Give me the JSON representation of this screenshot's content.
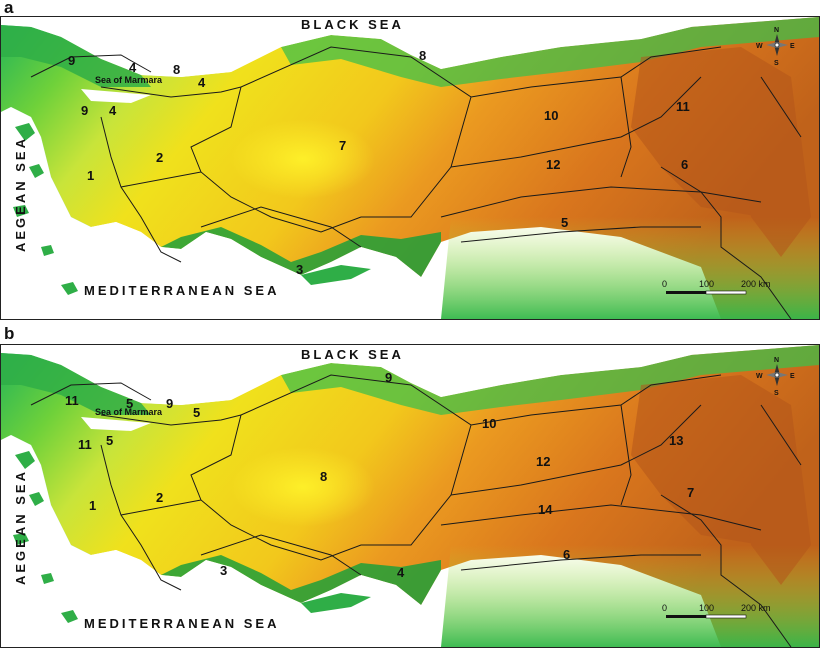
{
  "colors": {
    "sea": "#ffffff",
    "lowland": "#1fb35a",
    "mid": "#b9e33a",
    "plateau": "#f2e21a",
    "high": "#e8801c",
    "mountain": "#b4561a",
    "boundary": "#1a1a1a"
  },
  "map_a": {
    "panel_label": "a",
    "black_sea": "BLACK SEA",
    "aegean_sea": "AEGEAN SEA",
    "mediterranean_sea": "MEDITERRANEAN SEA",
    "marmara": "Sea of Marmara",
    "compass": {
      "n": "N",
      "s": "S",
      "e": "E",
      "w": "W"
    },
    "scale": {
      "zero": "0",
      "mid": "100",
      "end": "200 km"
    },
    "regions": [
      "9",
      "4",
      "8",
      "4",
      "8",
      "9",
      "4",
      "10",
      "11",
      "7",
      "2",
      "12",
      "6",
      "1",
      "5",
      "3"
    ]
  },
  "map_b": {
    "panel_label": "b",
    "black_sea": "BLACK SEA",
    "aegean_sea": "AEGEAN SEA",
    "mediterranean_sea": "MEDITERRANEAN SEA",
    "marmara": "Sea of Marmara",
    "compass": {
      "n": "N",
      "s": "S",
      "e": "E",
      "w": "W"
    },
    "scale": {
      "zero": "0",
      "mid": "100",
      "end": "200 km"
    },
    "regions": [
      "11",
      "5",
      "9",
      "5",
      "9",
      "11",
      "5",
      "10",
      "12",
      "13",
      "8",
      "2",
      "14",
      "7",
      "1",
      "6",
      "3",
      "4"
    ]
  }
}
